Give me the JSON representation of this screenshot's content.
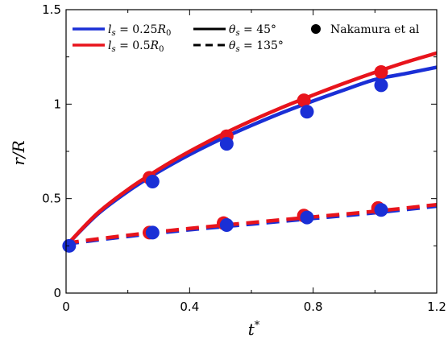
{
  "chart_data": {
    "type": "line",
    "xlabel": "t*",
    "ylabel": "r/R",
    "xlim": [
      0,
      1.2
    ],
    "ylim": [
      0,
      1.5
    ],
    "xticks": [
      "0",
      "0.4",
      "0.8",
      "1.2"
    ],
    "yticks": [
      "0",
      "0.5",
      "1",
      "1.5"
    ],
    "xtick_values": [
      0,
      0.4,
      0.8,
      1.2
    ],
    "ytick_values": [
      0,
      0.5,
      1,
      1.5
    ],
    "legend_position": "top",
    "series": [
      {
        "name": "l_s = 0.25R_0, θ_s = 45°",
        "color": "#1a2fd6",
        "dash": "solid",
        "x": [
          0,
          0.1,
          0.2,
          0.3,
          0.4,
          0.5,
          0.6,
          0.7,
          0.8,
          0.9,
          1.0,
          1.1,
          1.2
        ],
        "y": [
          0.25,
          0.414,
          0.538,
          0.642,
          0.733,
          0.814,
          0.887,
          0.955,
          1.017,
          1.075,
          1.13,
          1.162,
          1.195
        ]
      },
      {
        "name": "l_s = 0.5R_0, θ_s = 45°",
        "color": "#e8141c",
        "dash": "solid",
        "x": [
          0,
          0.1,
          0.2,
          0.3,
          0.4,
          0.5,
          0.6,
          0.7,
          0.8,
          0.9,
          1.0,
          1.1,
          1.2
        ],
        "y": [
          0.25,
          0.42,
          0.548,
          0.655,
          0.75,
          0.835,
          0.912,
          0.983,
          1.048,
          1.11,
          1.168,
          1.222,
          1.27
        ]
      },
      {
        "name": "l_s = 0.25R_0, θ_s = 135°",
        "color": "#1a2fd6",
        "dash": "dashed",
        "x": [
          0,
          0.2,
          0.4,
          0.6,
          0.8,
          1.0,
          1.2
        ],
        "y": [
          0.26,
          0.3,
          0.335,
          0.365,
          0.395,
          0.425,
          0.46
        ]
      },
      {
        "name": "l_s = 0.5R_0, θ_s = 135°",
        "color": "#e8141c",
        "dash": "dashed",
        "x": [
          0,
          0.2,
          0.4,
          0.6,
          0.8,
          1.0,
          1.2
        ],
        "y": [
          0.265,
          0.306,
          0.342,
          0.373,
          0.403,
          0.433,
          0.468
        ]
      }
    ],
    "markers": [
      {
        "name": "Nakamura et al (l_s = 0.25R_0)",
        "color": "#1a2fd6",
        "x": [
          0.01,
          0.28,
          0.52,
          0.78,
          1.02,
          0.28,
          0.52,
          0.78,
          1.02
        ],
        "y": [
          0.25,
          0.59,
          0.79,
          0.96,
          1.1,
          0.32,
          0.36,
          0.4,
          0.44
        ]
      },
      {
        "name": "Nakamura et al (l_s = 0.5R_0)",
        "color": "#e8141c",
        "x": [
          0.27,
          0.52,
          0.77,
          1.02,
          0.27,
          0.51,
          0.77,
          1.01
        ],
        "y": [
          0.61,
          0.83,
          1.02,
          1.17,
          0.32,
          0.37,
          0.41,
          0.45
        ]
      }
    ],
    "legend": {
      "items": [
        {
          "label": "l_s = 0.25R_0",
          "color": "#1a2fd6",
          "style": "solid"
        },
        {
          "label": "l_s = 0.5R_0",
          "color": "#e8141c",
          "style": "solid"
        },
        {
          "label": "θ_s = 45°",
          "color": "#000000",
          "style": "solid"
        },
        {
          "label": "θ_s = 135°",
          "color": "#000000",
          "style": "dashed"
        },
        {
          "label": "Nakamura et al",
          "color": "#000000",
          "style": "marker"
        }
      ]
    }
  }
}
